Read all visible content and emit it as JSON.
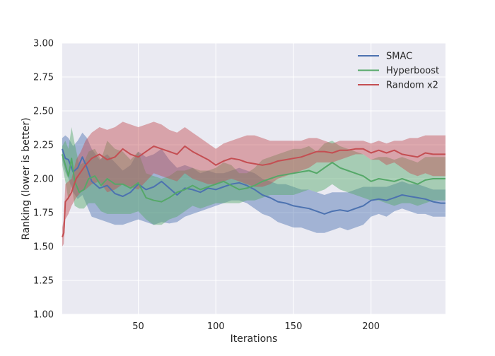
{
  "chart_data": {
    "type": "line",
    "title": "",
    "xlabel": "Iterations",
    "ylabel": "Ranking (lower is better)",
    "xlim": [
      1,
      248
    ],
    "ylim": [
      1.0,
      3.0
    ],
    "xticks": [
      50,
      100,
      150,
      200
    ],
    "yticks": [
      "1.00",
      "1.25",
      "1.50",
      "1.75",
      "2.00",
      "2.25",
      "2.50",
      "2.75",
      "3.00"
    ],
    "grid": true,
    "legend_position": "top-right",
    "series": [
      {
        "name": "SMAC",
        "color": "#4c72b0",
        "x": [
          1,
          3,
          5,
          8,
          11,
          14,
          17,
          20,
          25,
          30,
          35,
          40,
          45,
          50,
          55,
          60,
          65,
          70,
          75,
          80,
          85,
          90,
          95,
          100,
          105,
          110,
          115,
          120,
          125,
          130,
          135,
          140,
          145,
          150,
          155,
          160,
          165,
          170,
          175,
          180,
          185,
          190,
          195,
          200,
          205,
          210,
          215,
          220,
          225,
          230,
          235,
          240,
          245,
          248
        ],
        "y": [
          2.22,
          2.15,
          2.14,
          2.05,
          2.08,
          2.16,
          2.08,
          1.98,
          1.93,
          1.95,
          1.89,
          1.87,
          1.9,
          1.96,
          1.92,
          1.94,
          1.98,
          1.93,
          1.88,
          1.93,
          1.92,
          1.9,
          1.93,
          1.92,
          1.94,
          1.96,
          1.97,
          1.95,
          1.92,
          1.88,
          1.86,
          1.83,
          1.82,
          1.8,
          1.79,
          1.78,
          1.76,
          1.74,
          1.76,
          1.77,
          1.76,
          1.78,
          1.8,
          1.84,
          1.85,
          1.84,
          1.86,
          1.88,
          1.87,
          1.86,
          1.85,
          1.83,
          1.82,
          1.82
        ],
        "lower": [
          2.14,
          2.05,
          2.0,
          1.9,
          1.85,
          1.88,
          1.8,
          1.72,
          1.7,
          1.68,
          1.66,
          1.66,
          1.68,
          1.7,
          1.68,
          1.66,
          1.68,
          1.67,
          1.68,
          1.72,
          1.74,
          1.76,
          1.78,
          1.8,
          1.82,
          1.84,
          1.84,
          1.82,
          1.78,
          1.74,
          1.72,
          1.68,
          1.66,
          1.64,
          1.64,
          1.62,
          1.6,
          1.6,
          1.62,
          1.64,
          1.62,
          1.64,
          1.66,
          1.72,
          1.74,
          1.72,
          1.76,
          1.78,
          1.76,
          1.74,
          1.74,
          1.72,
          1.72,
          1.72
        ],
        "upper": [
          2.3,
          2.32,
          2.3,
          2.24,
          2.28,
          2.34,
          2.3,
          2.22,
          2.14,
          2.18,
          2.12,
          2.06,
          2.1,
          2.2,
          2.16,
          2.18,
          2.22,
          2.14,
          2.08,
          2.1,
          2.08,
          2.04,
          2.06,
          2.04,
          2.04,
          2.06,
          2.08,
          2.06,
          2.04,
          2.0,
          1.98,
          1.96,
          1.96,
          1.94,
          1.92,
          1.92,
          1.9,
          1.88,
          1.9,
          1.9,
          1.9,
          1.92,
          1.94,
          1.94,
          1.94,
          1.94,
          1.96,
          1.98,
          1.96,
          1.96,
          1.94,
          1.92,
          1.92,
          1.92
        ]
      },
      {
        "name": "Hyperboost",
        "color": "#55a868",
        "x": [
          1,
          3,
          5,
          7,
          9,
          12,
          15,
          18,
          22,
          26,
          30,
          35,
          40,
          45,
          50,
          55,
          60,
          65,
          70,
          75,
          80,
          85,
          90,
          95,
          100,
          105,
          110,
          115,
          120,
          125,
          130,
          135,
          140,
          145,
          150,
          155,
          160,
          165,
          170,
          175,
          180,
          185,
          190,
          195,
          200,
          205,
          210,
          215,
          220,
          225,
          230,
          235,
          240,
          245,
          248
        ],
        "y": [
          2.18,
          2.1,
          2.02,
          2.15,
          1.98,
          1.9,
          1.92,
          2.0,
          2.02,
          1.95,
          2.0,
          1.96,
          1.96,
          1.93,
          1.97,
          1.86,
          1.84,
          1.83,
          1.86,
          1.9,
          1.92,
          1.95,
          1.92,
          1.94,
          1.96,
          1.98,
          1.95,
          1.92,
          1.93,
          1.95,
          1.98,
          2.0,
          2.02,
          2.03,
          2.04,
          2.05,
          2.06,
          2.04,
          2.08,
          2.12,
          2.08,
          2.06,
          2.04,
          2.02,
          1.98,
          2.0,
          1.99,
          1.98,
          2.0,
          1.98,
          1.96,
          1.99,
          2.0,
          2.0,
          2.0
        ],
        "lower": [
          2.1,
          1.98,
          1.84,
          1.96,
          1.8,
          1.78,
          1.78,
          1.82,
          1.82,
          1.76,
          1.74,
          1.74,
          1.74,
          1.74,
          1.76,
          1.7,
          1.66,
          1.66,
          1.7,
          1.72,
          1.76,
          1.8,
          1.78,
          1.8,
          1.82,
          1.82,
          1.82,
          1.82,
          1.84,
          1.84,
          1.86,
          1.88,
          1.88,
          1.88,
          1.88,
          1.9,
          1.92,
          1.9,
          1.92,
          1.96,
          1.92,
          1.9,
          1.88,
          1.86,
          1.84,
          1.84,
          1.82,
          1.8,
          1.82,
          1.82,
          1.8,
          1.82,
          1.84,
          1.84,
          1.84
        ],
        "upper": [
          2.24,
          2.28,
          2.22,
          2.38,
          2.26,
          2.1,
          2.12,
          2.2,
          2.22,
          2.14,
          2.28,
          2.22,
          2.2,
          2.14,
          2.2,
          2.04,
          2.02,
          2.0,
          2.02,
          2.06,
          2.06,
          2.08,
          2.06,
          2.06,
          2.08,
          2.12,
          2.1,
          2.04,
          2.04,
          2.08,
          2.14,
          2.16,
          2.18,
          2.2,
          2.22,
          2.22,
          2.24,
          2.2,
          2.26,
          2.28,
          2.24,
          2.22,
          2.2,
          2.18,
          2.14,
          2.16,
          2.16,
          2.14,
          2.16,
          2.14,
          2.12,
          2.16,
          2.16,
          2.16,
          2.16
        ]
      },
      {
        "name": "Random x2",
        "color": "#c44e52",
        "x": [
          1,
          2,
          3,
          5,
          7,
          10,
          13,
          16,
          20,
          25,
          30,
          35,
          40,
          45,
          50,
          55,
          60,
          65,
          70,
          75,
          80,
          85,
          90,
          95,
          100,
          105,
          110,
          115,
          120,
          125,
          130,
          135,
          140,
          145,
          150,
          155,
          160,
          165,
          170,
          175,
          180,
          185,
          190,
          195,
          200,
          205,
          210,
          215,
          220,
          225,
          230,
          235,
          240,
          245,
          248
        ],
        "y": [
          1.57,
          1.6,
          1.83,
          1.86,
          1.9,
          2.0,
          2.05,
          2.1,
          2.15,
          2.18,
          2.14,
          2.16,
          2.22,
          2.18,
          2.16,
          2.2,
          2.24,
          2.22,
          2.2,
          2.18,
          2.24,
          2.2,
          2.17,
          2.14,
          2.1,
          2.13,
          2.15,
          2.14,
          2.12,
          2.11,
          2.1,
          2.11,
          2.13,
          2.14,
          2.15,
          2.16,
          2.18,
          2.2,
          2.2,
          2.19,
          2.21,
          2.21,
          2.22,
          2.22,
          2.19,
          2.21,
          2.19,
          2.21,
          2.18,
          2.17,
          2.16,
          2.19,
          2.18,
          2.18,
          2.18
        ],
        "lower": [
          1.5,
          1.52,
          1.7,
          1.74,
          1.8,
          1.86,
          1.9,
          1.92,
          1.96,
          1.98,
          1.9,
          1.92,
          1.96,
          1.94,
          1.92,
          1.98,
          2.04,
          2.02,
          2.0,
          1.98,
          2.04,
          2.0,
          1.98,
          1.96,
          1.96,
          1.98,
          2.0,
          1.98,
          1.96,
          1.94,
          1.94,
          1.96,
          2.0,
          2.02,
          2.04,
          2.06,
          2.08,
          2.12,
          2.12,
          2.12,
          2.14,
          2.16,
          2.18,
          2.18,
          2.14,
          2.14,
          2.1,
          2.12,
          2.08,
          2.04,
          2.02,
          2.04,
          2.02,
          2.02,
          2.02
        ],
        "upper": [
          1.64,
          1.7,
          1.96,
          1.98,
          2.0,
          2.14,
          2.2,
          2.28,
          2.34,
          2.38,
          2.36,
          2.38,
          2.42,
          2.4,
          2.38,
          2.4,
          2.42,
          2.4,
          2.36,
          2.34,
          2.38,
          2.34,
          2.3,
          2.26,
          2.22,
          2.26,
          2.28,
          2.3,
          2.32,
          2.32,
          2.3,
          2.28,
          2.28,
          2.28,
          2.28,
          2.28,
          2.3,
          2.3,
          2.28,
          2.26,
          2.28,
          2.28,
          2.28,
          2.28,
          2.26,
          2.28,
          2.26,
          2.28,
          2.28,
          2.3,
          2.3,
          2.32,
          2.32,
          2.32,
          2.32
        ]
      }
    ]
  }
}
